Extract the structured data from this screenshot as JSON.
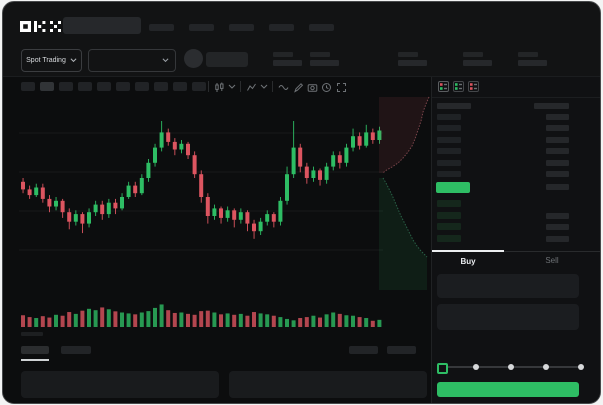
{
  "app": {
    "name": "OKX"
  },
  "colors": {
    "green": "#2ebd64",
    "red": "#dd5560",
    "window_bg": "#121314",
    "chart_bg": "#0c0d0e",
    "panel_bg": "#101113",
    "placeholder": "#232528",
    "buy_tab_indicator": "#eceef0"
  },
  "header": {
    "market_selector": {
      "label": "Spot Trading"
    },
    "nav_placeholder_count": 5,
    "stat_placeholder_count": 5
  },
  "chart_toolbar": {
    "interval_placeholder_count": 10,
    "active_interval_index": 1,
    "icons": [
      "candle-style",
      "chevron-down",
      "indicator",
      "chevron-down",
      "wave",
      "edit",
      "camera",
      "history",
      "fullscreen"
    ]
  },
  "chart_data": {
    "type": "candlestick",
    "title": "",
    "note": "no numeric axis labels visible in screenshot; OHLC values normalized 0-100",
    "up_color": "#2ebd64",
    "down_color": "#dd5560",
    "grid": true,
    "candles": [
      [
        58,
        60,
        52,
        54
      ],
      [
        54,
        56,
        49,
        51
      ],
      [
        51,
        57,
        50,
        55
      ],
      [
        55,
        57,
        47,
        49
      ],
      [
        49,
        51,
        42,
        45
      ],
      [
        45,
        50,
        43,
        48
      ],
      [
        48,
        49,
        39,
        42
      ],
      [
        42,
        44,
        33,
        37
      ],
      [
        37,
        43,
        35,
        41
      ],
      [
        41,
        42,
        31,
        36
      ],
      [
        36,
        44,
        34,
        42
      ],
      [
        42,
        48,
        40,
        46
      ],
      [
        46,
        48,
        38,
        41
      ],
      [
        41,
        49,
        39,
        47
      ],
      [
        47,
        49,
        41,
        44
      ],
      [
        44,
        52,
        43,
        50
      ],
      [
        50,
        58,
        49,
        56
      ],
      [
        56,
        58,
        50,
        52
      ],
      [
        52,
        62,
        51,
        60
      ],
      [
        60,
        70,
        58,
        68
      ],
      [
        68,
        78,
        66,
        76
      ],
      [
        76,
        90,
        74,
        84
      ],
      [
        84,
        86,
        77,
        79
      ],
      [
        79,
        81,
        72,
        75
      ],
      [
        75,
        80,
        73,
        78
      ],
      [
        78,
        79,
        70,
        72
      ],
      [
        72,
        74,
        60,
        62
      ],
      [
        62,
        64,
        47,
        50
      ],
      [
        50,
        52,
        36,
        40
      ],
      [
        40,
        46,
        38,
        44
      ],
      [
        44,
        45,
        36,
        39
      ],
      [
        39,
        45,
        37,
        43
      ],
      [
        43,
        44,
        34,
        38
      ],
      [
        38,
        44,
        36,
        42
      ],
      [
        42,
        43,
        32,
        36
      ],
      [
        36,
        38,
        28,
        32
      ],
      [
        32,
        39,
        30,
        37
      ],
      [
        37,
        43,
        35,
        41
      ],
      [
        41,
        42,
        34,
        37
      ],
      [
        37,
        50,
        35,
        48
      ],
      [
        48,
        66,
        46,
        62
      ],
      [
        62,
        90,
        60,
        76
      ],
      [
        76,
        78,
        63,
        66
      ],
      [
        66,
        68,
        57,
        60
      ],
      [
        60,
        66,
        58,
        64
      ],
      [
        64,
        65,
        56,
        59
      ],
      [
        59,
        68,
        57,
        66
      ],
      [
        66,
        74,
        64,
        72
      ],
      [
        72,
        74,
        65,
        68
      ],
      [
        68,
        78,
        66,
        76
      ],
      [
        76,
        86,
        74,
        82
      ],
      [
        82,
        84,
        75,
        77
      ],
      [
        77,
        88,
        76,
        84
      ],
      [
        84,
        86,
        78,
        80
      ],
      [
        80,
        87,
        78,
        85
      ]
    ],
    "volumes": [
      38,
      30,
      26,
      34,
      28,
      40,
      36,
      52,
      44,
      58,
      66,
      60,
      72,
      64,
      55,
      50,
      46,
      42,
      50,
      56,
      70,
      85,
      60,
      48,
      50,
      44,
      40,
      56,
      58,
      50,
      42,
      46,
      40,
      44,
      36,
      52,
      46,
      42,
      36,
      30,
      22,
      16,
      26,
      30,
      36,
      28,
      42,
      50,
      44,
      38,
      36,
      30,
      26,
      14,
      18
    ]
  },
  "depth_chart": {
    "type": "area",
    "ask_color": "#7c454b",
    "bid_color": "#2a6147",
    "ask_points": [
      [
        50,
        3
      ],
      [
        47,
        10
      ],
      [
        44,
        18
      ],
      [
        42,
        27
      ],
      [
        39,
        36
      ],
      [
        36,
        45
      ],
      [
        33,
        52
      ],
      [
        29,
        58
      ],
      [
        24,
        64
      ],
      [
        19,
        69
      ],
      [
        13,
        73
      ],
      [
        6,
        77
      ],
      [
        4,
        79
      ]
    ],
    "bid_points": [
      [
        4,
        84
      ],
      [
        7,
        89
      ],
      [
        10,
        95
      ],
      [
        13,
        101
      ],
      [
        16,
        108
      ],
      [
        19,
        115
      ],
      [
        22,
        122
      ],
      [
        26,
        130
      ],
      [
        30,
        138
      ],
      [
        34,
        146
      ],
      [
        38,
        152
      ],
      [
        42,
        157
      ],
      [
        46,
        161
      ],
      [
        48,
        163
      ]
    ]
  },
  "order_book": {
    "view_modes": [
      "book-all",
      "book-bids",
      "book-asks"
    ],
    "ask_row_count": 6,
    "bid_row_count": 4,
    "spread_highlight_color": "#2ebd64"
  },
  "trade_panel": {
    "tabs": [
      {
        "label": "Buy",
        "active": true
      },
      {
        "label": "Sell",
        "active": false
      }
    ],
    "slider": {
      "stops": 5,
      "value_index": 0
    },
    "submit_button": {
      "label": "",
      "color": "#2ebd64"
    }
  },
  "bottom_tabs": {
    "left_count": 2,
    "active_index": 0,
    "right_count": 2
  }
}
